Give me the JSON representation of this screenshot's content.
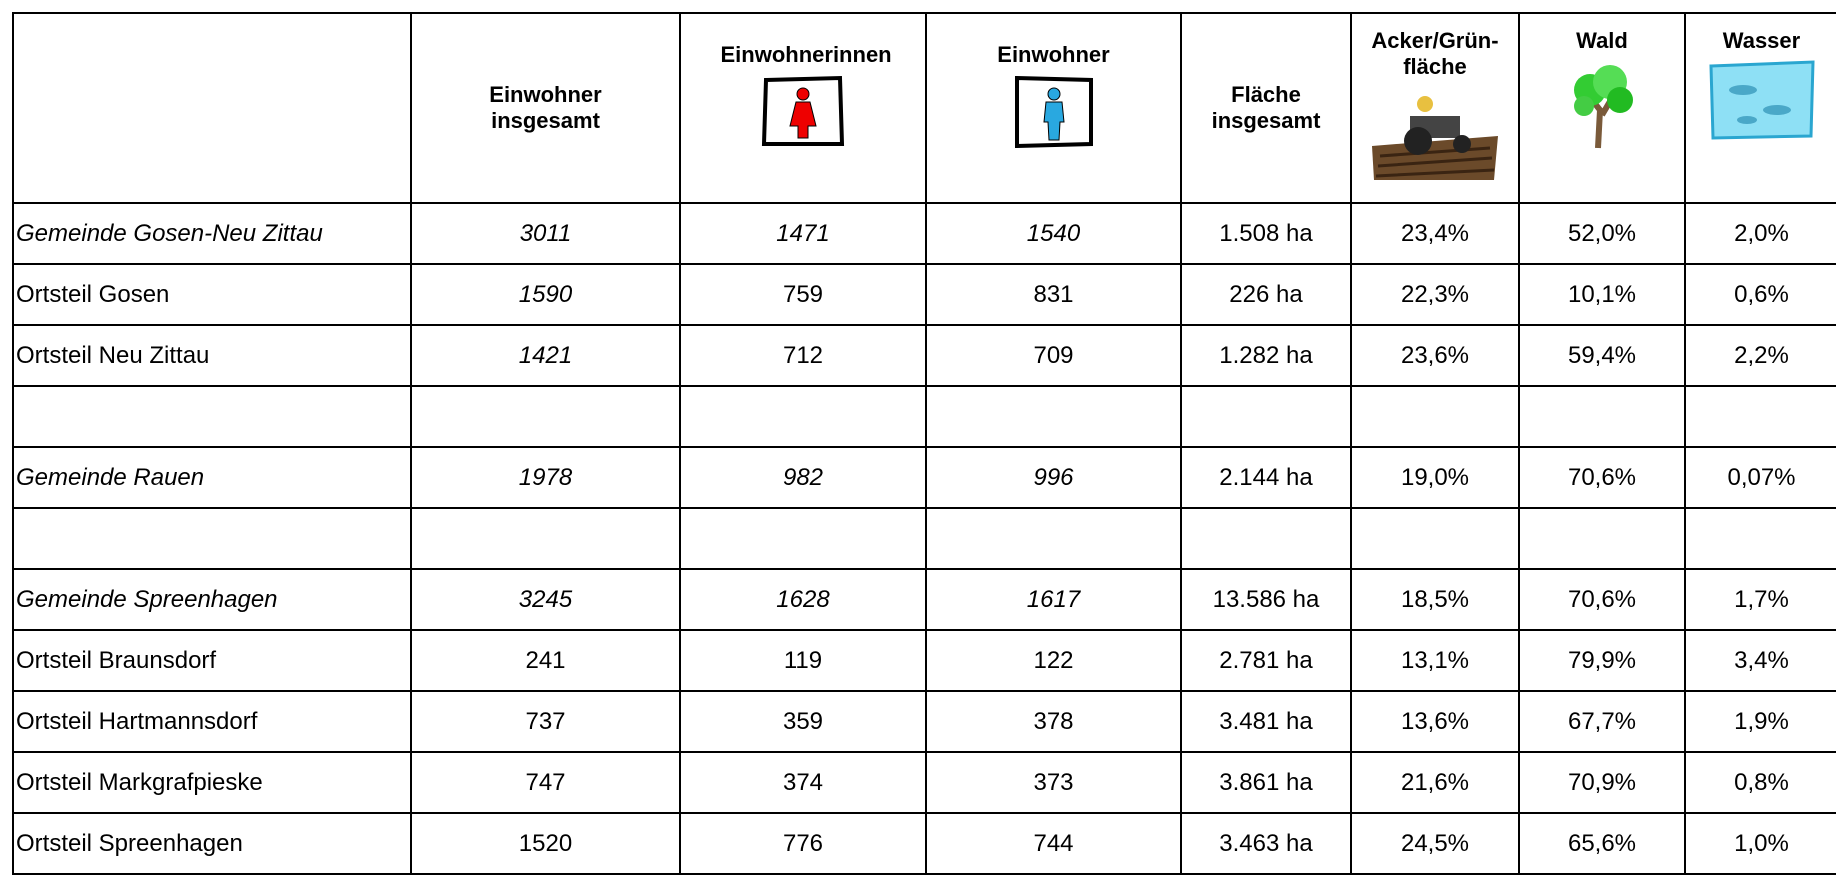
{
  "table": {
    "columns": [
      "Einwohner insgesamt",
      "Einwohnerinnen",
      "Einwohner",
      "Fläche insgesamt",
      "Acker/Grün-fläche",
      "Wald",
      "Wasser"
    ],
    "rows": [
      [
        "Gemeinde Gosen-Neu Zittau",
        "3011",
        "1471",
        "1540",
        "1.508 ha",
        "23,4%",
        "52,0%",
        "2,0%"
      ],
      [
        "Ortsteil Gosen",
        "1590",
        "759",
        "831",
        "226 ha",
        "22,3%",
        "10,1%",
        "0,6%"
      ],
      [
        "Ortsteil Neu Zittau",
        "1421",
        "712",
        "709",
        "1.282 ha",
        "23,6%",
        "59,4%",
        "2,2%"
      ],
      null,
      [
        "Gemeinde Rauen",
        "1978",
        "982",
        "996",
        "2.144 ha",
        "19,0%",
        "70,6%",
        "0,07%"
      ],
      null,
      [
        "Gemeinde Spreenhagen",
        "3245",
        "1628",
        "1617",
        "13.586 ha",
        "18,5%",
        "70,6%",
        "1,7%"
      ],
      [
        "Ortsteil Braunsdorf",
        "241",
        "119",
        "122",
        "2.781 ha",
        "13,1%",
        "79,9%",
        "3,4%"
      ],
      [
        "Ortsteil Hartmannsdorf",
        "737",
        "359",
        "378",
        "3.481 ha",
        "13,6%",
        "67,7%",
        "1,9%"
      ],
      [
        "Ortsteil Markgrafpieske",
        "747",
        "374",
        "373",
        "3.861 ha",
        "21,6%",
        "70,9%",
        "0,8%"
      ],
      [
        "Ortsteil Spreenhagen",
        "1520",
        "776",
        "744",
        "3.463 ha",
        "24,5%",
        "65,6%",
        "1,0%"
      ]
    ]
  }
}
